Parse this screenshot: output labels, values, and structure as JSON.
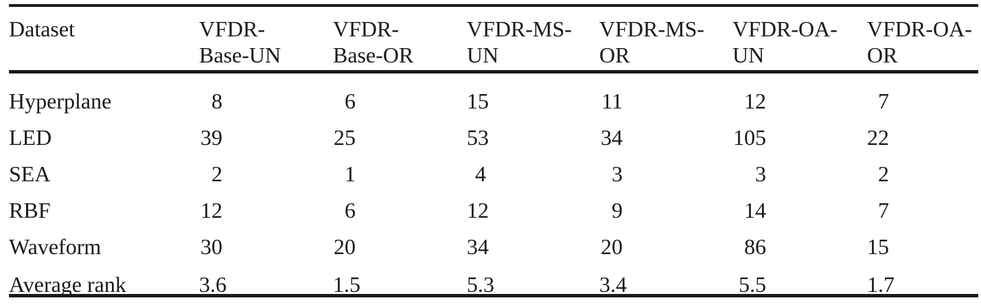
{
  "colors": {
    "background": "#ffffff",
    "text": "#1a1a1a",
    "rule": "#1a1a1a"
  },
  "table": {
    "columns": [
      "Dataset",
      "VFDR-\nBase-UN",
      "VFDR-\nBase-OR",
      "VFDR-MS-\nUN",
      "VFDR-MS-\nOR",
      "VFDR-OA-\nUN",
      "VFDR-OA-\nOR"
    ],
    "rows": [
      {
        "label": "Hyperplane",
        "values": [
          "8",
          "6",
          "15",
          "11",
          "12",
          "7"
        ]
      },
      {
        "label": "LED",
        "values": [
          "39",
          "25",
          "53",
          "34",
          "105",
          "22"
        ]
      },
      {
        "label": "SEA",
        "values": [
          "2",
          "1",
          "4",
          "3",
          "3",
          "2"
        ]
      },
      {
        "label": "RBF",
        "values": [
          "12",
          "6",
          "12",
          "9",
          "14",
          "7"
        ]
      },
      {
        "label": "Waveform",
        "values": [
          "30",
          "20",
          "34",
          "20",
          "86",
          "15"
        ]
      },
      {
        "label": "Average rank",
        "values": [
          "3.6",
          "1.5",
          "5.3",
          "3.4",
          "5.5",
          "1.7"
        ]
      }
    ]
  },
  "chart_data": {
    "type": "table",
    "columns": [
      "Dataset",
      "VFDR-Base-UN",
      "VFDR-Base-OR",
      "VFDR-MS-UN",
      "VFDR-MS-OR",
      "VFDR-OA-UN",
      "VFDR-OA-OR"
    ],
    "rows": [
      [
        "Hyperplane",
        8,
        6,
        15,
        11,
        12,
        7
      ],
      [
        "LED",
        39,
        25,
        53,
        34,
        105,
        22
      ],
      [
        "SEA",
        2,
        1,
        4,
        3,
        3,
        2
      ],
      [
        "RBF",
        12,
        6,
        12,
        9,
        14,
        7
      ],
      [
        "Waveform",
        30,
        20,
        34,
        20,
        86,
        15
      ],
      [
        "Average rank",
        3.6,
        1.5,
        5.3,
        3.4,
        5.5,
        1.7
      ]
    ]
  }
}
